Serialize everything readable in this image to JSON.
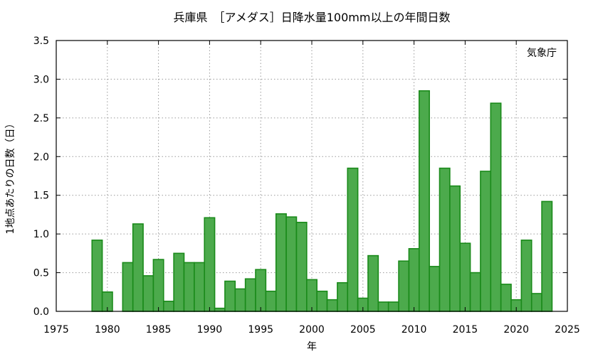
{
  "chart_data": {
    "type": "bar",
    "title": "兵庫県　［アメダス］日降水量100mm以上の年間日数",
    "xlabel": "年",
    "ylabel": "1地点あたりの日数（日）",
    "source_label": "気象庁",
    "xlim": [
      1975,
      2025
    ],
    "ylim": [
      0,
      3.5
    ],
    "x_ticks": [
      "1975",
      "1980",
      "1985",
      "1990",
      "1995",
      "2000",
      "2005",
      "2010",
      "2015",
      "2020",
      "2025"
    ],
    "y_ticks": [
      "0.0",
      "0.5",
      "1.0",
      "1.5",
      "2.0",
      "2.5",
      "3.0",
      "3.5"
    ],
    "grid": true,
    "bar_color": "#4caa4c",
    "bar_edge_color": "#1a8a1a",
    "x": [
      1979,
      1980,
      1982,
      1983,
      1984,
      1985,
      1986,
      1987,
      1988,
      1989,
      1990,
      1991,
      1992,
      1993,
      1994,
      1995,
      1996,
      1997,
      1998,
      1999,
      2000,
      2001,
      2002,
      2003,
      2004,
      2005,
      2006,
      2007,
      2008,
      2009,
      2010,
      2011,
      2012,
      2013,
      2014,
      2015,
      2016,
      2017,
      2018,
      2019,
      2020,
      2021,
      2022,
      2023
    ],
    "values": [
      0.92,
      0.25,
      0.63,
      1.13,
      0.46,
      0.67,
      0.13,
      0.75,
      0.63,
      0.63,
      1.21,
      0.04,
      0.39,
      0.29,
      0.42,
      0.54,
      0.26,
      1.26,
      1.22,
      1.15,
      0.41,
      0.26,
      0.15,
      0.37,
      1.85,
      0.17,
      0.72,
      0.12,
      0.12,
      0.65,
      0.81,
      2.85,
      0.58,
      1.85,
      1.62,
      0.88,
      0.5,
      1.81,
      2.69,
      0.35,
      0.15,
      0.92,
      0.23,
      1.42
    ]
  }
}
